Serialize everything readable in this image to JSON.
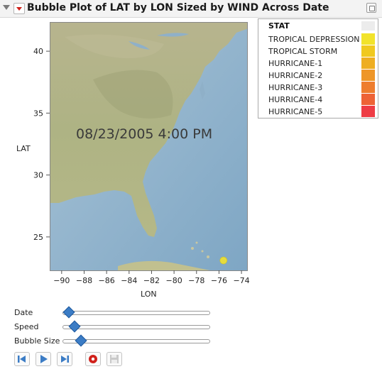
{
  "header": {
    "title": "Bubble Plot of LAT by LON Sized by WIND Across Date"
  },
  "plot": {
    "overlay_date": "08/23/2005 4:00 PM",
    "xlabel": "LON",
    "ylabel": "LAT"
  },
  "chart_data": {
    "type": "scatter",
    "subtype": "bubble",
    "xlabel": "LON",
    "ylabel": "LAT",
    "xlim": [
      -91,
      -73.5
    ],
    "ylim": [
      22.3,
      42.3
    ],
    "xticks": [
      -90,
      -88,
      -86,
      -84,
      -82,
      -80,
      -78,
      -76,
      -74
    ],
    "yticks": [
      25,
      30,
      35,
      40
    ],
    "grid": false,
    "legend_position": "top-right",
    "points": [
      {
        "x": -75.6,
        "y": 23.1,
        "stat": "TROPICAL DEPRESSION",
        "color": "#e6dc3c"
      }
    ],
    "legend": {
      "title": "STAT",
      "entries": [
        {
          "label": "TROPICAL DEPRESSION",
          "color": "#f2e32b"
        },
        {
          "label": "TROPICAL STORM",
          "color": "#f0c91f"
        },
        {
          "label": "HURRICANE-1",
          "color": "#eeae22"
        },
        {
          "label": "HURRICANE-2",
          "color": "#ee9628"
        },
        {
          "label": "HURRICANE-3",
          "color": "#ee7d2e"
        },
        {
          "label": "HURRICANE-4",
          "color": "#ee6336"
        },
        {
          "label": "HURRICANE-5",
          "color": "#ee3c45"
        }
      ]
    }
  },
  "controls": {
    "sliders": [
      {
        "label": "Date",
        "value": 0.02
      },
      {
        "label": "Speed",
        "value": 0.06
      },
      {
        "label": "Bubble Size",
        "value": 0.1
      }
    ],
    "buttons": [
      {
        "icon": "step-back-icon"
      },
      {
        "icon": "play-icon"
      },
      {
        "icon": "step-forward-icon"
      },
      {
        "icon": "record-icon"
      },
      {
        "icon": "save-icon"
      }
    ]
  },
  "colors": {
    "accent": "#3b7cc5",
    "header_bg": "#f3f3f3",
    "record": "#d0201a"
  }
}
